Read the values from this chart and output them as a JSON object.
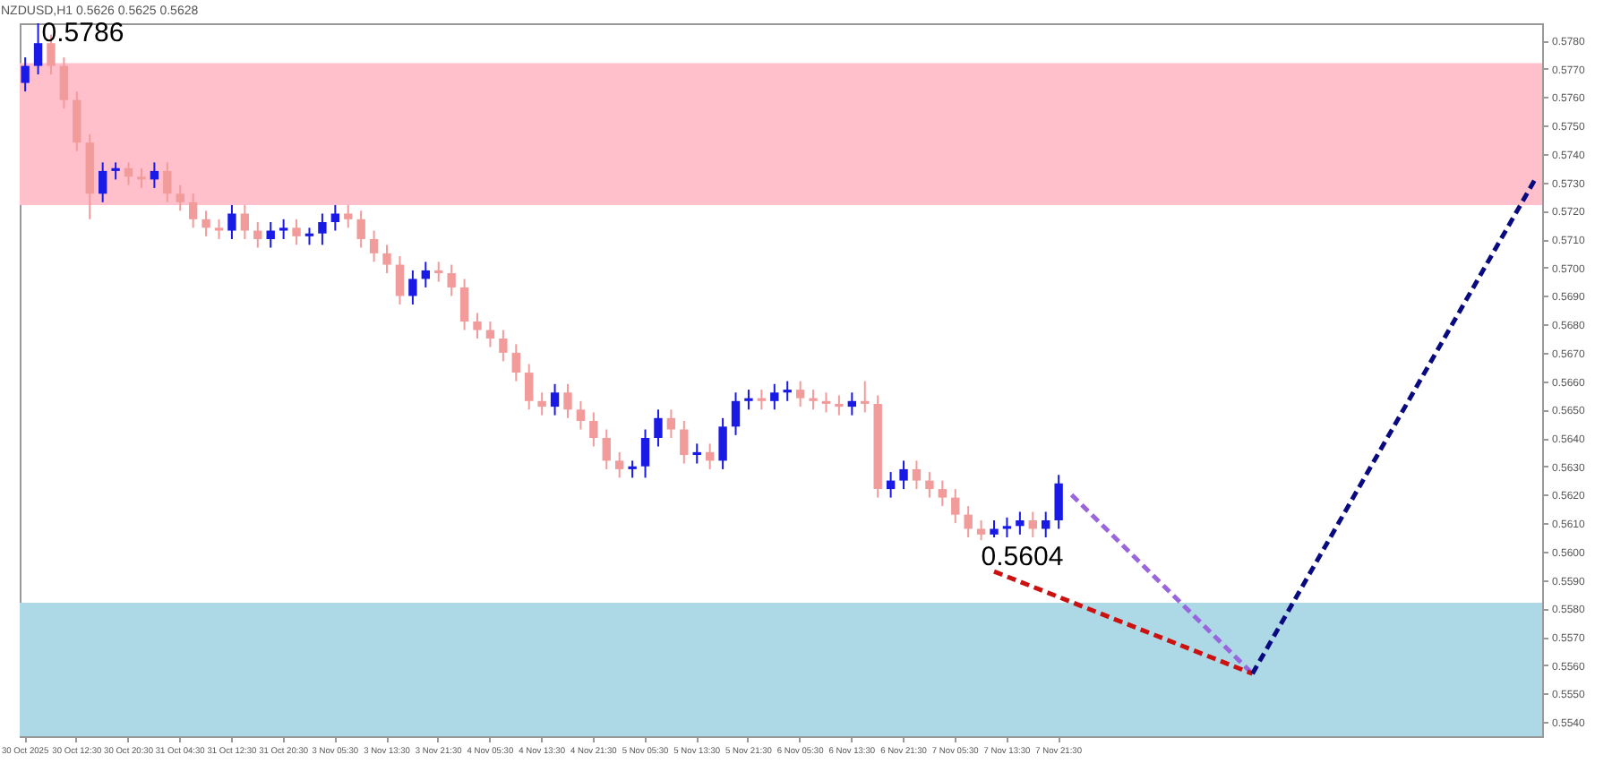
{
  "chart_data": {
    "type": "candlestick",
    "title": "NZDUSD,H1  0.5626 0.5625 0.5628",
    "categories": [
      "30 Oct 2025",
      null,
      null,
      null,
      "30 Oct 12:30",
      null,
      null,
      null,
      "30 Oct 20:30",
      null,
      null,
      null,
      "31 Oct 04:30",
      null,
      null,
      null,
      "31 Oct 12:30",
      null,
      null,
      null,
      "31 Oct 20:30",
      null,
      null,
      null,
      "3 Nov 05:30",
      null,
      null,
      null,
      "3 Nov 13:30",
      null,
      null,
      null,
      "3 Nov 21:30",
      null,
      null,
      null,
      "4 Nov 05:30",
      null,
      null,
      null,
      "4 Nov 13:30",
      null,
      null,
      null,
      "4 Nov 21:30",
      null,
      null,
      null,
      "5 Nov 05:30",
      null,
      null,
      null,
      "5 Nov 13:30",
      null,
      null,
      null,
      "5 Nov 21:30",
      null,
      null,
      null,
      "6 Nov 05:30",
      null,
      null,
      null,
      "6 Nov 13:30",
      null,
      null,
      null,
      "6 Nov 21:30",
      null,
      null,
      null,
      "7 Nov 05:30",
      null,
      null,
      null,
      "7 Nov 13:30",
      null,
      null,
      null,
      "7 Nov 21:30",
      null,
      null,
      null,
      null,
      null,
      null,
      null,
      null,
      null,
      null,
      null,
      null,
      null,
      null,
      null,
      null,
      null,
      null,
      null,
      null,
      null,
      null,
      null,
      null,
      null,
      null,
      null,
      null,
      null,
      null,
      null,
      null,
      null,
      null,
      null,
      null,
      null
    ],
    "series": [
      {
        "type": "candlestick",
        "ohlc": [
          [
            0.5765,
            0.5774,
            0.5762,
            0.5771
          ],
          [
            0.5771,
            0.5786,
            0.5768,
            0.5779
          ],
          [
            0.5779,
            0.5782,
            0.5768,
            0.5771
          ],
          [
            0.5771,
            0.5774,
            0.5756,
            0.5759
          ],
          [
            0.5759,
            0.5762,
            0.5741,
            0.5744
          ],
          [
            0.5744,
            0.5747,
            0.5717,
            0.5726
          ],
          [
            0.5726,
            0.5737,
            0.5723,
            0.5734
          ],
          [
            0.5734,
            0.5737,
            0.5731,
            0.5735
          ],
          [
            0.5735,
            0.5737,
            0.5729,
            0.5732
          ],
          [
            0.5732,
            0.5735,
            0.5728,
            0.5731
          ],
          [
            0.5731,
            0.5737,
            0.5728,
            0.5734
          ],
          [
            0.5734,
            0.5737,
            0.5723,
            0.5726
          ],
          [
            0.5726,
            0.5729,
            0.572,
            0.5723
          ],
          [
            0.5723,
            0.5726,
            0.5714,
            0.5717
          ],
          [
            0.5717,
            0.572,
            0.5711,
            0.5714
          ],
          [
            0.5714,
            0.5717,
            0.571,
            0.5713
          ],
          [
            0.5713,
            0.5722,
            0.571,
            0.5719
          ],
          [
            0.5719,
            0.5722,
            0.571,
            0.5713
          ],
          [
            0.5713,
            0.5716,
            0.5707,
            0.571
          ],
          [
            0.571,
            0.5716,
            0.5707,
            0.5713
          ],
          [
            0.5713,
            0.5717,
            0.571,
            0.5714
          ],
          [
            0.5714,
            0.5717,
            0.5708,
            0.5711
          ],
          [
            0.5711,
            0.5714,
            0.5708,
            0.5712
          ],
          [
            0.5712,
            0.5719,
            0.5708,
            0.5716
          ],
          [
            0.5716,
            0.5722,
            0.5713,
            0.5719
          ],
          [
            0.5719,
            0.5722,
            0.5714,
            0.5717
          ],
          [
            0.5717,
            0.572,
            0.5707,
            0.571
          ],
          [
            0.571,
            0.5713,
            0.5702,
            0.5705
          ],
          [
            0.5705,
            0.5708,
            0.5698,
            0.5701
          ],
          [
            0.5701,
            0.5704,
            0.5687,
            0.569
          ],
          [
            0.569,
            0.5699,
            0.5687,
            0.5696
          ],
          [
            0.5696,
            0.5702,
            0.5693,
            0.5699
          ],
          [
            0.5699,
            0.5702,
            0.5695,
            0.5698
          ],
          [
            0.5698,
            0.5701,
            0.569,
            0.5693
          ],
          [
            0.5693,
            0.5696,
            0.5678,
            0.5681
          ],
          [
            0.5681,
            0.5684,
            0.5675,
            0.5678
          ],
          [
            0.5678,
            0.5681,
            0.5672,
            0.5675
          ],
          [
            0.5675,
            0.5678,
            0.5667,
            0.567
          ],
          [
            0.567,
            0.5673,
            0.566,
            0.5663
          ],
          [
            0.5663,
            0.5666,
            0.565,
            0.5653
          ],
          [
            0.5653,
            0.5656,
            0.5648,
            0.5651
          ],
          [
            0.5651,
            0.5659,
            0.5648,
            0.5656
          ],
          [
            0.5656,
            0.5659,
            0.5647,
            0.565
          ],
          [
            0.565,
            0.5653,
            0.5643,
            0.5646
          ],
          [
            0.5646,
            0.5649,
            0.5637,
            0.564
          ],
          [
            0.564,
            0.5643,
            0.5629,
            0.5632
          ],
          [
            0.5632,
            0.5635,
            0.5626,
            0.5629
          ],
          [
            0.5629,
            0.5632,
            0.5626,
            0.563
          ],
          [
            0.563,
            0.5643,
            0.5626,
            0.564
          ],
          [
            0.564,
            0.565,
            0.5637,
            0.5647
          ],
          [
            0.5647,
            0.565,
            0.564,
            0.5643
          ],
          [
            0.5643,
            0.5646,
            0.5631,
            0.5634
          ],
          [
            0.5634,
            0.5638,
            0.5631,
            0.5635
          ],
          [
            0.5635,
            0.5638,
            0.5629,
            0.5632
          ],
          [
            0.5632,
            0.5647,
            0.5629,
            0.5644
          ],
          [
            0.5644,
            0.5656,
            0.5641,
            0.5653
          ],
          [
            0.5653,
            0.5657,
            0.565,
            0.5654
          ],
          [
            0.5654,
            0.5657,
            0.565,
            0.5653
          ],
          [
            0.5653,
            0.5659,
            0.565,
            0.5656
          ],
          [
            0.5656,
            0.566,
            0.5653,
            0.5657
          ],
          [
            0.5657,
            0.566,
            0.5651,
            0.5654
          ],
          [
            0.5654,
            0.5657,
            0.565,
            0.5653
          ],
          [
            0.5653,
            0.5656,
            0.5649,
            0.5652
          ],
          [
            0.5652,
            0.5655,
            0.5648,
            0.5651
          ],
          [
            0.5651,
            0.5656,
            0.5648,
            0.5653
          ],
          [
            0.5653,
            0.566,
            0.5649,
            0.5652
          ],
          [
            0.5652,
            0.5655,
            0.5619,
            0.5622
          ],
          [
            0.5622,
            0.5628,
            0.5619,
            0.5625
          ],
          [
            0.5625,
            0.5632,
            0.5622,
            0.5629
          ],
          [
            0.5629,
            0.5632,
            0.5622,
            0.5625
          ],
          [
            0.5625,
            0.5628,
            0.5619,
            0.5622
          ],
          [
            0.5622,
            0.5625,
            0.5616,
            0.5619
          ],
          [
            0.5619,
            0.5622,
            0.561,
            0.5613
          ],
          [
            0.5613,
            0.5616,
            0.5605,
            0.5608
          ],
          [
            0.5608,
            0.5611,
            0.5604,
            0.5606
          ],
          [
            0.5606,
            0.5611,
            0.5605,
            0.5608
          ],
          [
            0.5608,
            0.5612,
            0.5605,
            0.5609
          ],
          [
            0.5609,
            0.5614,
            0.5606,
            0.5611
          ],
          [
            0.5611,
            0.5614,
            0.5605,
            0.5608
          ],
          [
            0.5608,
            0.5614,
            0.5605,
            0.5611
          ],
          [
            0.5611,
            0.5627,
            0.5608,
            0.5624
          ],
          null,
          null,
          null,
          null,
          null,
          null,
          null,
          null,
          null,
          null,
          null,
          null,
          null,
          null,
          null,
          null,
          null,
          null,
          null,
          null,
          null,
          null,
          null,
          null,
          null,
          null,
          null,
          null,
          null,
          null,
          null,
          null,
          null,
          null,
          null,
          null,
          null
        ],
        "colors": [
          "#1a1ae6",
          "#1a1ae6",
          "#f29b9b",
          "#f29b9b",
          "#f29b9b",
          "#f29b9b",
          "#1a1ae6",
          "#1a1ae6",
          "#f29b9b",
          "#f29b9b",
          "#1a1ae6",
          "#f29b9b",
          "#f29b9b",
          "#f29b9b",
          "#f29b9b",
          "#f29b9b",
          "#1a1ae6",
          "#f29b9b",
          "#f29b9b",
          "#1a1ae6",
          "#1a1ae6",
          "#f29b9b",
          "#1a1ae6",
          "#1a1ae6",
          "#1a1ae6",
          "#f29b9b",
          "#f29b9b",
          "#f29b9b",
          "#f29b9b",
          "#f29b9b",
          "#1a1ae6",
          "#1a1ae6",
          "#f29b9b",
          "#f29b9b",
          "#f29b9b",
          "#f29b9b",
          "#f29b9b",
          "#f29b9b",
          "#f29b9b",
          "#f29b9b",
          "#f29b9b",
          "#1a1ae6",
          "#f29b9b",
          "#f29b9b",
          "#f29b9b",
          "#f29b9b",
          "#f29b9b",
          "#1a1ae6",
          "#1a1ae6",
          "#1a1ae6",
          "#f29b9b",
          "#f29b9b",
          "#1a1ae6",
          "#f29b9b",
          "#1a1ae6",
          "#1a1ae6",
          "#1a1ae6",
          "#f29b9b",
          "#1a1ae6",
          "#1a1ae6",
          "#f29b9b",
          "#f29b9b",
          "#f29b9b",
          "#f29b9b",
          "#1a1ae6",
          "#f29b9b",
          "#f29b9b",
          "#1a1ae6",
          "#1a1ae6",
          "#f29b9b",
          "#f29b9b",
          "#f29b9b",
          "#f29b9b",
          "#f29b9b",
          "#f29b9b",
          "#1a1ae6",
          "#1a1ae6",
          "#1a1ae6",
          "#f29b9b",
          "#1a1ae6",
          "#1a1ae6",
          null,
          null,
          null,
          null,
          null,
          null,
          null,
          null,
          null,
          null,
          null,
          null,
          null,
          null,
          null,
          null,
          null,
          null,
          null,
          null,
          null,
          null,
          null,
          null,
          null,
          null,
          null,
          null,
          null,
          null,
          null,
          null,
          null,
          null,
          null,
          null,
          null
        ]
      },
      {
        "type": "line",
        "color": "#9966dd",
        "line_style": "dashed",
        "values": [
          null,
          null,
          null,
          null,
          null,
          null,
          null,
          null,
          null,
          null,
          null,
          null,
          null,
          null,
          null,
          null,
          null,
          null,
          null,
          null,
          null,
          null,
          null,
          null,
          null,
          null,
          null,
          null,
          null,
          null,
          null,
          null,
          null,
          null,
          null,
          null,
          null,
          null,
          null,
          null,
          null,
          null,
          null,
          null,
          null,
          null,
          null,
          null,
          null,
          null,
          null,
          null,
          null,
          null,
          null,
          null,
          null,
          null,
          null,
          null,
          null,
          null,
          null,
          null,
          null,
          null,
          null,
          null,
          null,
          null,
          null,
          null,
          null,
          null,
          null,
          null,
          null,
          null,
          null,
          null,
          null,
          0.562,
          null,
          null,
          null,
          null,
          null,
          null,
          null,
          null,
          null,
          null,
          null,
          null,
          null,
          0.5557,
          null,
          null,
          null,
          null,
          null,
          null,
          null,
          null,
          null,
          null,
          null,
          null,
          null,
          null,
          null,
          null,
          null,
          null,
          null,
          null,
          null,
          null
        ]
      },
      {
        "type": "line",
        "color": "#cc1111",
        "line_style": "dashed",
        "values": [
          null,
          null,
          null,
          null,
          null,
          null,
          null,
          null,
          null,
          null,
          null,
          null,
          null,
          null,
          null,
          null,
          null,
          null,
          null,
          null,
          null,
          null,
          null,
          null,
          null,
          null,
          null,
          null,
          null,
          null,
          null,
          null,
          null,
          null,
          null,
          null,
          null,
          null,
          null,
          null,
          null,
          null,
          null,
          null,
          null,
          null,
          null,
          null,
          null,
          null,
          null,
          null,
          null,
          null,
          null,
          null,
          null,
          null,
          null,
          null,
          null,
          null,
          null,
          null,
          null,
          null,
          null,
          null,
          null,
          null,
          null,
          null,
          null,
          null,
          null,
          0.5593,
          null,
          null,
          null,
          null,
          null,
          null,
          null,
          null,
          null,
          null,
          null,
          null,
          null,
          null,
          null,
          null,
          null,
          null,
          null,
          0.5557,
          null,
          null,
          null,
          null,
          null,
          null,
          null,
          null,
          null,
          null,
          null,
          null,
          null,
          null,
          null,
          null,
          null,
          null,
          null,
          null,
          null,
          null
        ]
      },
      {
        "type": "line",
        "color": "#0a0a80",
        "line_style": "dashed",
        "values": [
          null,
          null,
          null,
          null,
          null,
          null,
          null,
          null,
          null,
          null,
          null,
          null,
          null,
          null,
          null,
          null,
          null,
          null,
          null,
          null,
          null,
          null,
          null,
          null,
          null,
          null,
          null,
          null,
          null,
          null,
          null,
          null,
          null,
          null,
          null,
          null,
          null,
          null,
          null,
          null,
          null,
          null,
          null,
          null,
          null,
          null,
          null,
          null,
          null,
          null,
          null,
          null,
          null,
          null,
          null,
          null,
          null,
          null,
          null,
          null,
          null,
          null,
          null,
          null,
          null,
          null,
          null,
          null,
          null,
          null,
          null,
          null,
          null,
          null,
          null,
          null,
          null,
          null,
          null,
          null,
          null,
          null,
          null,
          null,
          null,
          null,
          null,
          null,
          null,
          null,
          null,
          null,
          null,
          null,
          null,
          0.5557,
          null,
          null,
          null,
          null,
          null,
          null,
          null,
          null,
          null,
          null,
          null,
          null,
          null,
          null,
          null,
          null,
          null,
          null,
          null,
          null,
          null,
          0.5732
        ]
      }
    ],
    "ylim": [
      0.5535,
      0.5786
    ],
    "yticks": [
      {
        "value": 0.554,
        "label": "0.5540"
      },
      {
        "value": 0.555,
        "label": "0.5550"
      },
      {
        "value": 0.556,
        "label": "0.5560"
      },
      {
        "value": 0.557,
        "label": "0.5570"
      },
      {
        "value": 0.558,
        "label": "0.5580"
      },
      {
        "value": 0.559,
        "label": "0.5590"
      },
      {
        "value": 0.56,
        "label": "0.5600"
      },
      {
        "value": 0.561,
        "label": "0.5610"
      },
      {
        "value": 0.562,
        "label": "0.5620"
      },
      {
        "value": 0.563,
        "label": "0.5630"
      },
      {
        "value": 0.564,
        "label": "0.5640"
      },
      {
        "value": 0.565,
        "label": "0.5650"
      },
      {
        "value": 0.566,
        "label": "0.5660"
      },
      {
        "value": 0.567,
        "label": "0.5670"
      },
      {
        "value": 0.568,
        "label": "0.5680"
      },
      {
        "value": 0.569,
        "label": "0.5690"
      },
      {
        "value": 0.57,
        "label": "0.5700"
      },
      {
        "value": 0.571,
        "label": "0.5710"
      },
      {
        "value": 0.572,
        "label": "0.5720"
      },
      {
        "value": 0.573,
        "label": "0.5730"
      },
      {
        "value": 0.574,
        "label": "0.5740"
      },
      {
        "value": 0.575,
        "label": "0.5750"
      },
      {
        "value": 0.576,
        "label": "0.5760"
      },
      {
        "value": 0.577,
        "label": "0.5770"
      },
      {
        "value": 0.578,
        "label": "0.5780"
      }
    ],
    "bands": [
      {
        "axis": "y",
        "from": 0.5722,
        "to": 0.5772,
        "color": "#ffc0cb"
      },
      {
        "axis": "y",
        "from": 0.5535,
        "to": 0.5582,
        "color": "#add8e6"
      }
    ],
    "annotations": [
      "0.5786",
      "0.5604"
    ],
    "grid": false
  }
}
